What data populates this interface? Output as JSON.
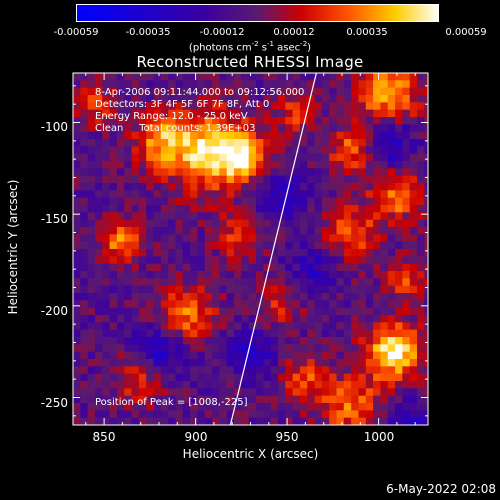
{
  "colorbar": {
    "ticks": [
      "-0.00059",
      "-0.00035",
      "-0.00012",
      "0.00012",
      "0.00035",
      "0.00059"
    ],
    "units_main": "(photons cm",
    "units_sup1": "-2",
    "units_mid1": " s",
    "units_sup2": "-1",
    "units_mid2": " asec",
    "units_sup3": "-2",
    "units_end": ")"
  },
  "chart_data": {
    "type": "heatmap",
    "title": "Reconstructed RHESSI Image",
    "xlabel": "Heliocentric X (arcsec)",
    "ylabel": "Heliocentric Y (arcsec)",
    "xlim": [
      833,
      1027
    ],
    "ylim": [
      -265,
      -73
    ],
    "xticks": [
      850,
      900,
      950,
      1000
    ],
    "yticks": [
      -100,
      -150,
      -200,
      -250
    ],
    "xtick_labels": [
      "850",
      "900",
      "950",
      "1000"
    ],
    "ytick_labels": [
      "-100",
      "-150",
      "-200",
      "-250"
    ],
    "color_range": [
      -0.00059,
      0.00059
    ],
    "limb_line": {
      "x": [
        919,
        966
      ],
      "y": [
        -265,
        -73
      ]
    },
    "peak": {
      "x": 1008,
      "y": -225
    },
    "hotspots": [
      {
        "x": 905,
        "y": -115,
        "amp": 0.0005,
        "w": 16
      },
      {
        "x": 880,
        "y": -110,
        "amp": 0.00035,
        "w": 10
      },
      {
        "x": 925,
        "y": -118,
        "amp": 0.00045,
        "w": 10
      },
      {
        "x": 860,
        "y": -165,
        "amp": 0.0004,
        "w": 8
      },
      {
        "x": 895,
        "y": -205,
        "amp": 0.00038,
        "w": 11
      },
      {
        "x": 870,
        "y": -240,
        "amp": 0.00028,
        "w": 10
      },
      {
        "x": 925,
        "y": -162,
        "amp": 0.0003,
        "w": 9
      },
      {
        "x": 985,
        "y": -160,
        "amp": 0.00034,
        "w": 10
      },
      {
        "x": 1010,
        "y": -140,
        "amp": 0.00038,
        "w": 10
      },
      {
        "x": 1005,
        "y": -85,
        "amp": 0.00048,
        "w": 12
      },
      {
        "x": 985,
        "y": -115,
        "amp": 0.00035,
        "w": 9
      },
      {
        "x": 1008,
        "y": -225,
        "amp": 0.00059,
        "w": 11
      },
      {
        "x": 985,
        "y": -255,
        "amp": 0.00035,
        "w": 12
      },
      {
        "x": 960,
        "y": -240,
        "amp": 0.0003,
        "w": 9
      },
      {
        "x": 955,
        "y": -95,
        "amp": 0.00025,
        "w": 8
      },
      {
        "x": 945,
        "y": -200,
        "amp": 0.00022,
        "w": 8
      },
      {
        "x": 1015,
        "y": -185,
        "amp": 0.0003,
        "w": 8
      },
      {
        "x": 845,
        "y": -90,
        "amp": 0.00028,
        "w": 8
      }
    ],
    "coldspots": [
      {
        "x": 1005,
        "y": -110,
        "amp": -0.0003,
        "w": 10
      },
      {
        "x": 880,
        "y": -225,
        "amp": -0.00032,
        "w": 10
      },
      {
        "x": 930,
        "y": -225,
        "amp": -0.00028,
        "w": 9
      },
      {
        "x": 945,
        "y": -140,
        "amp": -0.00025,
        "w": 10
      },
      {
        "x": 1015,
        "y": -265,
        "amp": -0.0003,
        "w": 9
      },
      {
        "x": 965,
        "y": -180,
        "amp": -0.00022,
        "w": 9
      }
    ]
  },
  "info": {
    "time_range": "8-Apr-2006 09:11:44.000 to 09:12:56.000",
    "detectors": "Detectors: 3F 4F 5F 6F 7F 8F, Att 0",
    "energy": "Energy Range: 12.0 - 25.0 keV",
    "method": "Clean     Total counts: 1.39E+03",
    "peak": "Position of Peak = [1008,-225]"
  },
  "footer": {
    "date": "6-May-2022 02:08"
  }
}
